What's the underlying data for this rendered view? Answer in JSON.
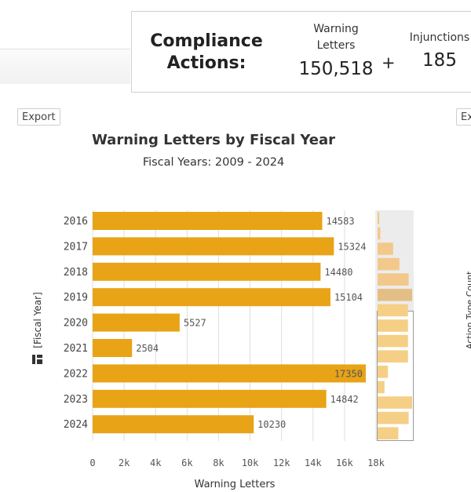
{
  "summary": {
    "title_line1": "Compliance",
    "title_line2": "Actions:",
    "warning_label_line1": "Warning",
    "warning_label_line2": "Letters",
    "warning_value": "150,518",
    "plus": "+",
    "injunctions_label": "Injunctions",
    "injunctions_value": "185"
  },
  "export_left": "Export",
  "export_right": "Ex",
  "right_axis_fragment": "Action Type Count",
  "chart_data": {
    "type": "bar",
    "orientation": "horizontal",
    "title": "Warning Letters by Fiscal Year",
    "subtitle": "Fiscal Years: 2009 - 2024",
    "xlabel": "Warning Letters",
    "ylabel": "[Fiscal Year]",
    "categories": [
      "2016",
      "2017",
      "2018",
      "2019",
      "2020",
      "2021",
      "2022",
      "2023",
      "2024"
    ],
    "values": [
      14583,
      15324,
      14480,
      15104,
      5527,
      2504,
      17350,
      14842,
      10230
    ],
    "data_labels": [
      "14583",
      "15324",
      "14480",
      "15104",
      "5527",
      "2504",
      "17350",
      "14842",
      "10230"
    ],
    "xlim": [
      0,
      18000
    ],
    "x_ticks": [
      0,
      2000,
      4000,
      6000,
      8000,
      10000,
      12000,
      14000,
      16000,
      18000
    ],
    "x_tick_labels": [
      "0",
      "2k",
      "4k",
      "6k",
      "8k",
      "10k",
      "12k",
      "14k",
      "16k",
      "18k"
    ],
    "grid": true,
    "bar_color": "#e8a317",
    "minimap": {
      "values": [
        0.05,
        0.08,
        0.45,
        0.63,
        0.9,
        1.0,
        0.88,
        0.88,
        0.88,
        0.88,
        0.3,
        0.2,
        1.0,
        0.9,
        0.6
      ],
      "selection": "years 2016-2024 highlighted",
      "bar_color": "#f5cf86",
      "selected_bar_color": "#e9c690"
    }
  }
}
